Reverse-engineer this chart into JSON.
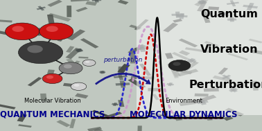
{
  "title_line1": "Quantum",
  "title_line2": "Vibration",
  "title_line3": "Perturbation",
  "title_fontsize": 11.5,
  "label_qm_main": "QUANTUM MECHANICS",
  "label_qm_sub": "Molecular Vibration",
  "label_md_main": "MOLECULAR DYNAMICS",
  "label_md_sub": "Environment",
  "label_perturb": "perturbation",
  "label_fontsize_main": 8.5,
  "label_fontsize_sub": 6.0,
  "label_perturb_fontsize": 6.5,
  "bg_color": "#c0c8c0",
  "arrow_color": "#1a1a8c",
  "red_dotted_color": "#cc0000",
  "blue_dotted_color": "#2222cc",
  "pink_dotted_color": "#cc99cc",
  "solid_line_color": "#000000",
  "title_color": "#000000",
  "qm_label_color": "#00008b",
  "md_label_color": "#00008b"
}
